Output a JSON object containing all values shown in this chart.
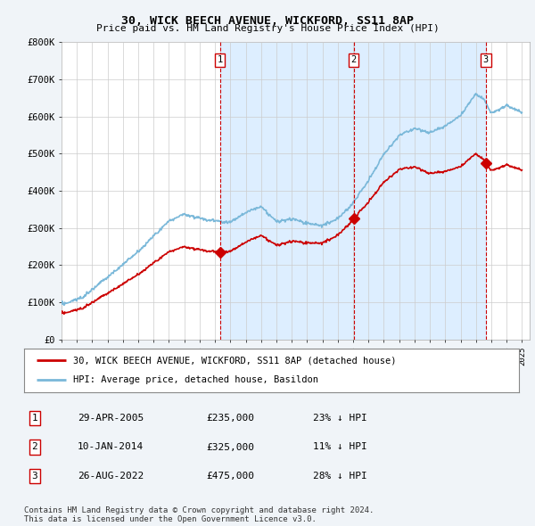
{
  "title": "30, WICK BEECH AVENUE, WICKFORD, SS11 8AP",
  "subtitle": "Price paid vs. HM Land Registry's House Price Index (HPI)",
  "ylabel_ticks": [
    "£0",
    "£100K",
    "£200K",
    "£300K",
    "£400K",
    "£500K",
    "£600K",
    "£700K",
    "£800K"
  ],
  "ytick_values": [
    0,
    100000,
    200000,
    300000,
    400000,
    500000,
    600000,
    700000,
    800000
  ],
  "ylim": [
    0,
    800000
  ],
  "xlim_start": 1995.0,
  "xlim_end": 2025.5,
  "sale_dates": [
    2005.32,
    2014.03,
    2022.65
  ],
  "sale_prices": [
    235000,
    325000,
    475000
  ],
  "sale_labels": [
    "1",
    "2",
    "3"
  ],
  "hpi_color": "#7ab8d9",
  "sale_color": "#cc0000",
  "vline_color": "#cc0000",
  "shade_color": "#ddeeff",
  "background_color": "#f0f4f8",
  "plot_bg_color": "#ffffff",
  "grid_color": "#cccccc",
  "legend_items": [
    "30, WICK BEECH AVENUE, WICKFORD, SS11 8AP (detached house)",
    "HPI: Average price, detached house, Basildon"
  ],
  "table_data": [
    [
      "1",
      "29-APR-2005",
      "£235,000",
      "23% ↓ HPI"
    ],
    [
      "2",
      "10-JAN-2014",
      "£325,000",
      "11% ↓ HPI"
    ],
    [
      "3",
      "26-AUG-2022",
      "£475,000",
      "28% ↓ HPI"
    ]
  ],
  "footer": "Contains HM Land Registry data © Crown copyright and database right 2024.\nThis data is licensed under the Open Government Licence v3.0.",
  "xtick_years": [
    1995,
    1996,
    1997,
    1998,
    1999,
    2000,
    2001,
    2002,
    2003,
    2004,
    2005,
    2006,
    2007,
    2008,
    2009,
    2010,
    2011,
    2012,
    2013,
    2014,
    2015,
    2016,
    2017,
    2018,
    2019,
    2020,
    2021,
    2022,
    2023,
    2024,
    2025
  ]
}
